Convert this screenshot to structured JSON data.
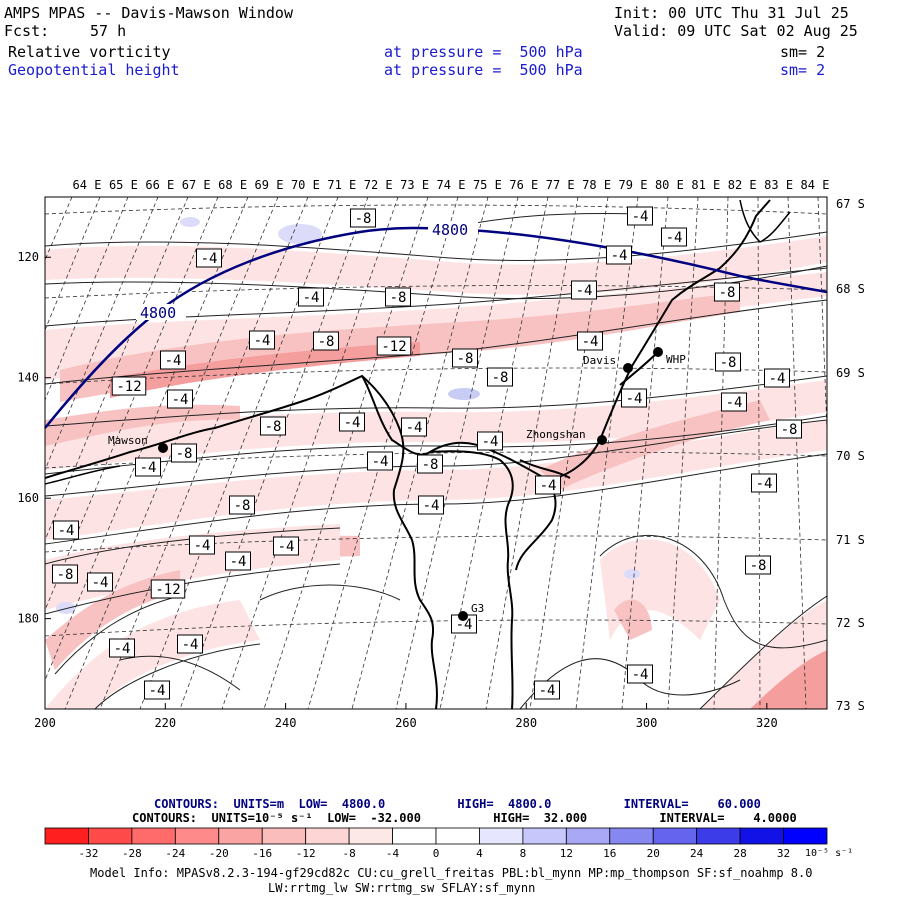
{
  "header": {
    "title": "AMPS MPAS -- Davis-Mawson Window",
    "init": "Init: 00 UTC Thu 31 Jul 25",
    "fcst_label": "Fcst:",
    "fcst_value": "57 h",
    "valid": "Valid: 09 UTC Sat 02 Aug 25",
    "field1": {
      "name": "Relative vorticity",
      "level": "at pressure =  500 hPa",
      "smooth": "sm= 2"
    },
    "field2": {
      "name": "Geopotential height",
      "level": "at pressure =  500 hPa",
      "smooth": "sm= 2"
    }
  },
  "map": {
    "lon_labels": [
      "64 E",
      "65 E",
      "66 E",
      "67 E",
      "68 E",
      "69 E",
      "70 E",
      "71 E",
      "72 E",
      "73 E",
      "74 E",
      "75 E",
      "76 E",
      "77 E",
      "78 E",
      "79 E",
      "80 E",
      "81 E",
      "82 E",
      "83 E",
      "84 E"
    ],
    "lat_labels": [
      "67 S",
      "68 S",
      "69 S",
      "70 S",
      "71 S",
      "72 S",
      "73 S"
    ],
    "x_ticks": [
      "200",
      "220",
      "240",
      "260",
      "280",
      "300",
      "320"
    ],
    "y_ticks": [
      "120",
      "140",
      "160",
      "180"
    ],
    "stations": {
      "mawson": "Mawson",
      "davis": "Davis",
      "zhongshan": "Zhongshan",
      "g3": "G3",
      "whp": "WHP"
    },
    "height_contour_label": "4800",
    "colors": {
      "positive_vort": "#f4a6a6",
      "negative_vort": "#c8ccf4",
      "coast": "#000000",
      "height": "#000080"
    }
  },
  "contour_labels": [
    {
      "t": "-8"
    },
    {
      "t": "-4"
    },
    {
      "t": "-4"
    },
    {
      "t": "-4"
    },
    {
      "t": "-4"
    },
    {
      "t": "-4"
    },
    {
      "t": "-8"
    },
    {
      "t": "-4"
    },
    {
      "t": "-4"
    },
    {
      "t": "-8"
    },
    {
      "t": "-12"
    },
    {
      "t": "-8"
    },
    {
      "t": "-4"
    },
    {
      "t": "-4"
    },
    {
      "t": "-8"
    },
    {
      "t": "-8"
    },
    {
      "t": "-12"
    },
    {
      "t": "-4"
    },
    {
      "t": "-8"
    },
    {
      "t": "-4"
    },
    {
      "t": "-4"
    },
    {
      "t": "-4"
    },
    {
      "t": "-8"
    },
    {
      "t": "-4"
    },
    {
      "t": "-8"
    },
    {
      "t": "-4"
    },
    {
      "t": "-8"
    },
    {
      "t": "-8"
    },
    {
      "t": "-4"
    },
    {
      "t": "-4"
    },
    {
      "t": "-4"
    },
    {
      "t": "-8"
    },
    {
      "t": "-4"
    },
    {
      "t": "-4"
    },
    {
      "t": "-4"
    },
    {
      "t": "-4"
    },
    {
      "t": "-4"
    },
    {
      "t": "-4"
    },
    {
      "t": "-4"
    },
    {
      "t": "-8"
    },
    {
      "t": "-4"
    },
    {
      "t": "-12"
    },
    {
      "t": "-8"
    },
    {
      "t": "-4"
    },
    {
      "t": "-4"
    },
    {
      "t": "-4"
    },
    {
      "t": "-4"
    },
    {
      "t": "-4"
    },
    {
      "t": "-4"
    }
  ],
  "contours_info": {
    "line1": "CONTOURS:  UNITS=m  LOW=  4800.0          HIGH=  4800.0          INTERVAL=    60.000",
    "line2": "CONTOURS:  UNITS=10⁻⁵ s⁻¹  LOW=  -32.000          HIGH=  32.000          INTERVAL=    4.0000"
  },
  "colorbar": {
    "colors": [
      "#ff1f1f",
      "#ff4a4a",
      "#ff6b6b",
      "#ff8a8a",
      "#faa4a4",
      "#fbbcbc",
      "#fdd5d5",
      "#fde8e8",
      "#ffffff",
      "#ffffff",
      "#e6e6ff",
      "#c7c7fb",
      "#a8a8f6",
      "#8787f2",
      "#6464ef",
      "#3c3ce9",
      "#1212e6",
      "#0000ff"
    ],
    "ticks": [
      "-32",
      "-28",
      "-24",
      "-20",
      "-16",
      "-12",
      "-8",
      "-4",
      "0",
      "4",
      "8",
      "12",
      "16",
      "20",
      "24",
      "28",
      "32"
    ],
    "unit": "10⁻⁵ s⁻¹"
  },
  "model_info": {
    "line1": "Model Info: MPASv8.2.3-194-gf29cd82c CU:cu_grell_freitas PBL:bl_mynn MP:mp_thompson SF:sf_noahmp 8.0",
    "line2": "LW:rrtmg_lw SW:rrtmg_sw SFLAY:sf_mynn"
  }
}
